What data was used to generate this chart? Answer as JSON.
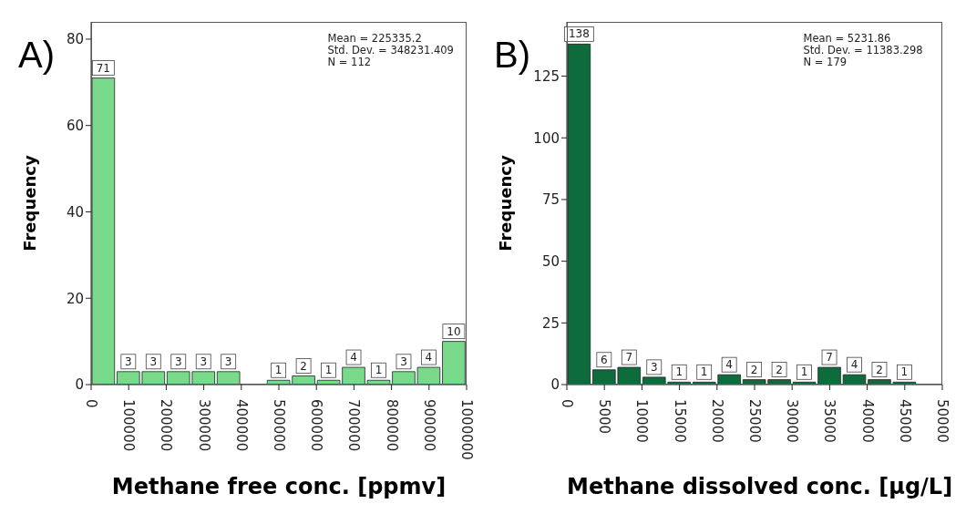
{
  "chart_data": [
    {
      "type": "histogram",
      "title": "A)",
      "xlabel": "Methane free conc. [ppmv]",
      "ylabel": "Frequency",
      "bins": [
        0,
        66667,
        133333,
        200000,
        266667,
        333333,
        400000,
        466667,
        533333,
        600000,
        666667,
        733333,
        800000,
        866667,
        933333,
        1000000
      ],
      "values": [
        71,
        3,
        3,
        3,
        3,
        3,
        0,
        1,
        2,
        1,
        4,
        1,
        3,
        4,
        10
      ],
      "value_labels": [
        "71",
        "3",
        "3",
        "3",
        "3",
        "3",
        null,
        "1",
        "2",
        "1",
        "4",
        "1",
        "3",
        "4",
        "10"
      ],
      "color": "#7ada8c",
      "xlim": [
        0,
        1000000
      ],
      "xticks": [
        0,
        100000,
        200000,
        300000,
        400000,
        500000,
        600000,
        700000,
        800000,
        900000,
        1000000
      ],
      "ylim": [
        0,
        84
      ],
      "yticks": [
        0,
        20,
        40,
        60,
        80
      ],
      "annotations": [
        "Mean = 225335.2",
        "Std. Dev. = 348231.409",
        "N = 112"
      ]
    },
    {
      "type": "histogram",
      "title": "B)",
      "xlabel": "Methane dissolved conc. [µg/L]",
      "ylabel": "Frequency",
      "bins": [
        0,
        3333,
        6667,
        10000,
        13333,
        16667,
        20000,
        23333,
        26667,
        30000,
        33333,
        36667,
        40000,
        43333,
        46667
      ],
      "values": [
        138,
        6,
        7,
        3,
        1,
        1,
        4,
        2,
        2,
        1,
        7,
        4,
        2,
        1
      ],
      "data_labels": true,
      "color": "#0e6b3c",
      "xlim": [
        0,
        50000
      ],
      "xticks": [
        0,
        5000,
        10000,
        15000,
        20000,
        25000,
        30000,
        35000,
        40000,
        45000,
        50000
      ],
      "ylim": [
        0,
        147
      ],
      "yticks": [
        0,
        25,
        50,
        75,
        100,
        125
      ],
      "annotations": [
        "Mean = 5231.86",
        "Std. Dev. = 11383.298",
        "N = 179"
      ]
    }
  ]
}
